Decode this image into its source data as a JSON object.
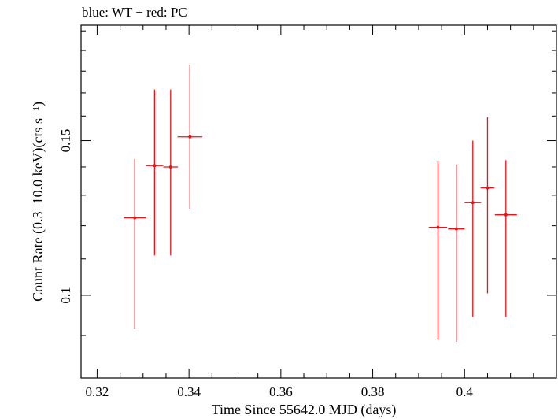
{
  "chart_data": {
    "type": "scatter",
    "title": "blue: WT − red: PC",
    "xlabel": "Time Since 55642.0 MJD (days)",
    "ylabel": "Count Rate (0.3–10.0 keV)(cts s⁻¹)",
    "xlim": [
      0.3165,
      0.42
    ],
    "ylim": [
      0.0805,
      0.203
    ],
    "y_scale": "log",
    "grid": false,
    "x_ticks": [
      0.32,
      0.34,
      0.36,
      0.38,
      0.4
    ],
    "x_tick_labels": [
      "0.32",
      "0.34",
      "0.36",
      "0.38",
      "0.4"
    ],
    "y_ticks": [
      0.1,
      0.15
    ],
    "y_tick_labels": [
      "0.1",
      "0.15"
    ],
    "series": [
      {
        "color": "#e8141a",
        "points": [
          {
            "x": 0.3282,
            "xerr": 0.0024,
            "y": 0.1225,
            "ylo": 0.0915,
            "yhi": 0.143
          },
          {
            "x": 0.3325,
            "xerr": 0.0019,
            "y": 0.1405,
            "ylo": 0.111,
            "yhi": 0.1715
          },
          {
            "x": 0.336,
            "xerr": 0.0016,
            "y": 0.14,
            "ylo": 0.111,
            "yhi": 0.1715
          },
          {
            "x": 0.3402,
            "xerr": 0.0027,
            "y": 0.1515,
            "ylo": 0.1255,
            "yhi": 0.183
          },
          {
            "x": 0.3942,
            "xerr": 0.002,
            "y": 0.1195,
            "ylo": 0.089,
            "yhi": 0.142
          },
          {
            "x": 0.3982,
            "xerr": 0.0018,
            "y": 0.119,
            "ylo": 0.0885,
            "yhi": 0.141
          },
          {
            "x": 0.4018,
            "xerr": 0.0018,
            "y": 0.1275,
            "ylo": 0.0945,
            "yhi": 0.15
          },
          {
            "x": 0.405,
            "xerr": 0.0015,
            "y": 0.1325,
            "ylo": 0.1005,
            "yhi": 0.1595
          },
          {
            "x": 0.409,
            "xerr": 0.0024,
            "y": 0.1235,
            "ylo": 0.0945,
            "yhi": 0.1425
          }
        ]
      }
    ]
  }
}
